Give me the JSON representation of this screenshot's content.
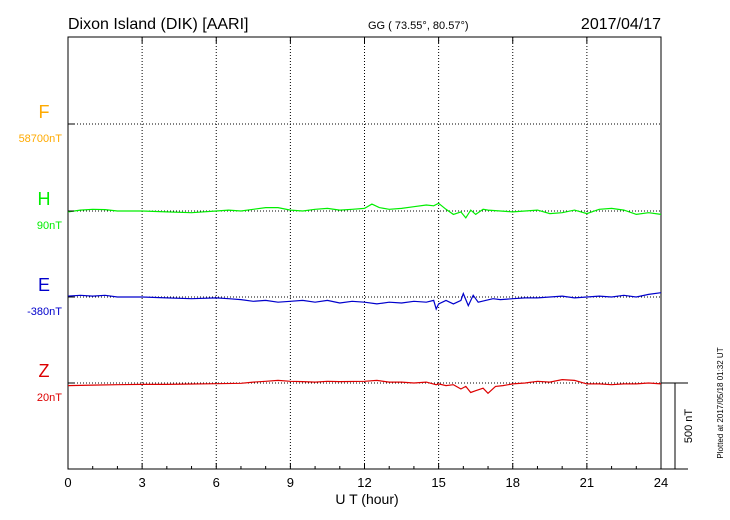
{
  "header": {
    "station": "Dixon Island (DIK)  [AARI]",
    "coords": "GG ( 73.55°,  80.57°)",
    "date": "2017/04/17"
  },
  "side_note": "Plotted at 2017/05/18 01:32 UT",
  "colors": {
    "F": "#ffaa00",
    "H": "#00ee00",
    "E": "#0000cc",
    "Z": "#dd0000",
    "grid": "#000000"
  },
  "chart_data": {
    "type": "line",
    "xlabel": "U T (hour)",
    "xlim": [
      0,
      24
    ],
    "xticks": [
      "0",
      "3",
      "6",
      "9",
      "12",
      "15",
      "18",
      "21",
      "24"
    ],
    "scale_bar": "500 nT",
    "series": [
      {
        "name": "F",
        "baseline_label": "58700nT",
        "x": [],
        "y": []
      },
      {
        "name": "H",
        "baseline_label": "90nT",
        "x": [
          0,
          0.5,
          1,
          1.5,
          2,
          3,
          4,
          5,
          6,
          6.5,
          7,
          7.5,
          8,
          8.5,
          9,
          9.5,
          10,
          10.5,
          11,
          11.5,
          12,
          12.3,
          12.6,
          13,
          13.5,
          14,
          14.5,
          14.8,
          15,
          15.3,
          15.6,
          15.9,
          16.1,
          16.3,
          16.5,
          16.8,
          17,
          17.5,
          18,
          18.5,
          19,
          19.5,
          20,
          20.5,
          21,
          21.5,
          22,
          22.5,
          23,
          23.5,
          24
        ],
        "y": [
          -5,
          5,
          10,
          8,
          0,
          0,
          -5,
          -10,
          0,
          5,
          0,
          10,
          20,
          20,
          5,
          0,
          10,
          15,
          5,
          10,
          15,
          40,
          20,
          10,
          15,
          25,
          35,
          30,
          45,
          10,
          -20,
          -5,
          -40,
          5,
          -20,
          10,
          5,
          0,
          -5,
          0,
          5,
          -15,
          -10,
          5,
          -15,
          10,
          15,
          5,
          -20,
          -10,
          -20
        ]
      },
      {
        "name": "E",
        "baseline_label": "-380nT",
        "x": [
          0,
          0.5,
          1,
          1.5,
          2,
          3,
          4,
          5,
          6,
          6.5,
          7,
          7.5,
          8,
          8.5,
          9,
          9.5,
          10,
          10.5,
          11,
          11.5,
          12,
          12.5,
          13,
          13.5,
          14,
          14.5,
          14.8,
          14.9,
          15,
          15.3,
          15.6,
          15.9,
          16,
          16.2,
          16.4,
          16.6,
          16.9,
          17.2,
          17.5,
          18,
          18.5,
          19,
          19.5,
          20,
          20.5,
          21,
          21.5,
          22,
          22.5,
          23,
          23.5,
          24
        ],
        "y": [
          5,
          10,
          5,
          10,
          0,
          0,
          -5,
          -10,
          -5,
          -10,
          -15,
          -25,
          -20,
          -30,
          -25,
          -20,
          -30,
          -20,
          -35,
          -25,
          -30,
          -40,
          -30,
          -35,
          -25,
          -30,
          -20,
          -70,
          -40,
          -20,
          -40,
          -20,
          20,
          -50,
          10,
          -30,
          -20,
          -10,
          -15,
          -10,
          -5,
          -5,
          0,
          5,
          -5,
          0,
          5,
          0,
          10,
          0,
          15,
          25
        ]
      },
      {
        "name": "Z",
        "baseline_label": "20nT",
        "x": [
          0,
          1,
          2,
          3,
          4,
          5,
          6,
          7,
          7.5,
          8,
          8.5,
          9,
          9.5,
          10,
          10.5,
          11,
          12,
          12.5,
          13,
          13.5,
          14,
          14.5,
          14.9,
          15,
          15.3,
          15.6,
          15.9,
          16.1,
          16.3,
          16.5,
          16.8,
          17,
          17.3,
          17.6,
          18,
          18.5,
          19,
          19.5,
          20,
          20.5,
          21,
          21.5,
          22,
          22.5,
          23,
          23.5,
          24
        ],
        "y": [
          -15,
          -12,
          -10,
          -8,
          -8,
          -6,
          -4,
          -2,
          5,
          10,
          15,
          10,
          8,
          5,
          10,
          8,
          10,
          15,
          5,
          5,
          0,
          5,
          -10,
          -5,
          -15,
          -10,
          -35,
          -20,
          -55,
          -45,
          -30,
          -60,
          -20,
          -15,
          -5,
          0,
          10,
          5,
          20,
          15,
          -5,
          -5,
          -10,
          -5,
          -5,
          0,
          -5
        ]
      }
    ]
  }
}
